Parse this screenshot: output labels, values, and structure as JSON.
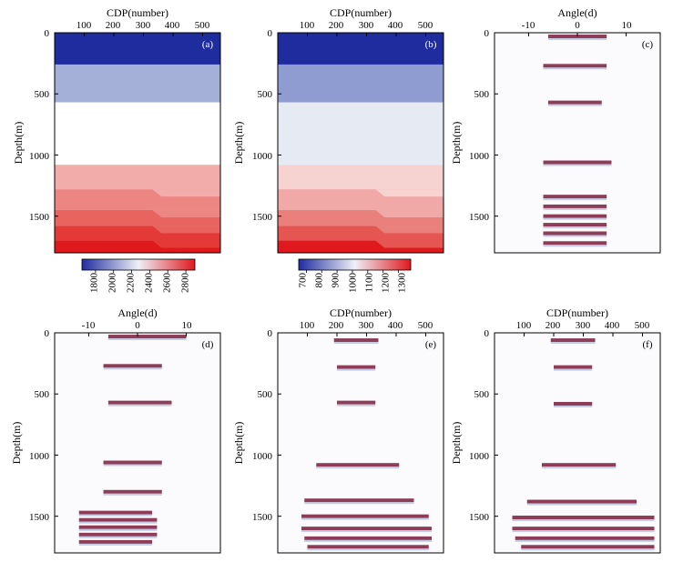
{
  "figure": {
    "panels": [
      {
        "letter": "(a)",
        "xlabel": "CDP(number)",
        "xticks": [
          "100",
          "200",
          "300",
          "400",
          "500"
        ],
        "ylabel": "Depth(m)",
        "yticks": [
          "0",
          "500",
          "1000",
          "1500"
        ],
        "colorbar_ticks": [
          "1800",
          "2000",
          "2200",
          "2400",
          "2600",
          "2800"
        ]
      },
      {
        "letter": "(b)",
        "xlabel": "CDP(number)",
        "xticks": [
          "100",
          "200",
          "300",
          "400",
          "500"
        ],
        "ylabel": "Depth(m)",
        "yticks": [
          "0",
          "500",
          "1000",
          "1500"
        ],
        "colorbar_ticks": [
          "700",
          "800",
          "900",
          "1000",
          "1100",
          "1200",
          "1300"
        ]
      },
      {
        "letter": "(c)",
        "xlabel": "Angle(d)",
        "xticks": [
          "-10",
          "0",
          "10"
        ],
        "ylabel": "Depth(m)",
        "yticks": [
          "0",
          "500",
          "1000",
          "1500"
        ]
      },
      {
        "letter": "(d)",
        "xlabel": "Angle(d)",
        "xticks": [
          "-10",
          "0",
          "10"
        ],
        "ylabel": "Depth(m)",
        "yticks": [
          "0",
          "500",
          "1000",
          "1500"
        ]
      },
      {
        "letter": "(e)",
        "xlabel": "CDP(number)",
        "xticks": [
          "100",
          "200",
          "300",
          "400",
          "500"
        ],
        "ylabel": "Depth(m)",
        "yticks": [
          "0",
          "500",
          "1000",
          "1500"
        ]
      },
      {
        "letter": "(f)",
        "xlabel": "CDP(number)",
        "xticks": [
          "100",
          "200",
          "300",
          "400",
          "500"
        ],
        "ylabel": "Depth(m)",
        "yticks": [
          "0",
          "500",
          "1000",
          "1500"
        ]
      }
    ]
  },
  "colors": {
    "blue": "#1f2c9e",
    "light_blue": "#e6eaf3",
    "red": "#e0191f",
    "event": "#7a1b3b"
  },
  "chart_data": [
    {
      "type": "heatmap",
      "title": "(a)",
      "xlabel": "CDP(number)",
      "ylabel": "Depth(m)",
      "xlim": [
        0,
        560
      ],
      "ylim": [
        0,
        1800
      ],
      "layers": [
        {
          "top_depth": 0,
          "value": 1600,
          "color": "#1f2c9e"
        },
        {
          "top_depth": 260,
          "value": 2000,
          "color": "#a5b0d8"
        },
        {
          "top_depth": 570,
          "value": 2300,
          "color": "#ffffff"
        },
        {
          "top_depth": 1080,
          "value": 2500,
          "color": "#f2adab"
        },
        {
          "top_depth": 1280,
          "value": 2600,
          "color": "#ec8683"
        },
        {
          "top_depth": 1450,
          "value": 2700,
          "color": "#e8645f"
        },
        {
          "top_depth": 1580,
          "value": 2800,
          "color": "#e43a37"
        },
        {
          "top_depth": 1700,
          "value": 2850,
          "color": "#e0191f"
        }
      ],
      "colorbar": {
        "min": 1650,
        "max": 2900,
        "ticks": [
          1800,
          2000,
          2200,
          2400,
          2600,
          2800
        ]
      }
    },
    {
      "type": "heatmap",
      "title": "(b)",
      "xlabel": "CDP(number)",
      "ylabel": "Depth(m)",
      "xlim": [
        0,
        560
      ],
      "ylim": [
        0,
        1800
      ],
      "layers": [
        {
          "top_depth": 0,
          "value": 700,
          "color": "#1f2c9e"
        },
        {
          "top_depth": 260,
          "value": 850,
          "color": "#8e9cd2"
        },
        {
          "top_depth": 570,
          "value": 1000,
          "color": "#e6eaf3"
        },
        {
          "top_depth": 1080,
          "value": 1100,
          "color": "#f6d2d0"
        },
        {
          "top_depth": 1280,
          "value": 1200,
          "color": "#f0a9a6"
        },
        {
          "top_depth": 1450,
          "value": 1250,
          "color": "#ea807b"
        },
        {
          "top_depth": 1580,
          "value": 1300,
          "color": "#e55552"
        },
        {
          "top_depth": 1700,
          "value": 1350,
          "color": "#e0191f"
        }
      ],
      "colorbar": {
        "min": 650,
        "max": 1380,
        "ticks": [
          700,
          800,
          900,
          1000,
          1100,
          1200,
          1300
        ]
      }
    },
    {
      "type": "heatmap",
      "title": "(c)",
      "xlabel": "Angle(d)",
      "ylabel": "Depth(m)",
      "xlim": [
        -17,
        17
      ],
      "ylim": [
        0,
        1800
      ],
      "events": [
        {
          "depth": 30,
          "x_from": -6,
          "x_to": 6
        },
        {
          "depth": 270,
          "x_from": -7,
          "x_to": 6
        },
        {
          "depth": 570,
          "x_from": -6,
          "x_to": 5
        },
        {
          "depth": 1060,
          "x_from": -7,
          "x_to": 7
        },
        {
          "depth": 1340,
          "x_from": -7,
          "x_to": 6
        },
        {
          "depth": 1420,
          "x_from": -7,
          "x_to": 6
        },
        {
          "depth": 1500,
          "x_from": -7,
          "x_to": 6
        },
        {
          "depth": 1570,
          "x_from": -7,
          "x_to": 6
        },
        {
          "depth": 1640,
          "x_from": -7,
          "x_to": 6
        },
        {
          "depth": 1720,
          "x_from": -7,
          "x_to": 6
        }
      ]
    },
    {
      "type": "heatmap",
      "title": "(d)",
      "xlabel": "Angle(d)",
      "ylabel": "Depth(m)",
      "xlim": [
        -17,
        17
      ],
      "ylim": [
        0,
        1800
      ],
      "events": [
        {
          "depth": 30,
          "x_from": -6,
          "x_to": 10
        },
        {
          "depth": 270,
          "x_from": -7,
          "x_to": 5
        },
        {
          "depth": 570,
          "x_from": -6,
          "x_to": 7
        },
        {
          "depth": 1060,
          "x_from": -7,
          "x_to": 5
        },
        {
          "depth": 1300,
          "x_from": -7,
          "x_to": 5
        },
        {
          "depth": 1470,
          "x_from": -12,
          "x_to": 3
        },
        {
          "depth": 1530,
          "x_from": -12,
          "x_to": 4
        },
        {
          "depth": 1590,
          "x_from": -12,
          "x_to": 4
        },
        {
          "depth": 1650,
          "x_from": -12,
          "x_to": 4
        },
        {
          "depth": 1710,
          "x_from": -12,
          "x_to": 3
        }
      ]
    },
    {
      "type": "heatmap",
      "title": "(e)",
      "xlabel": "CDP(number)",
      "ylabel": "Depth(m)",
      "xlim": [
        0,
        560
      ],
      "ylim": [
        0,
        1800
      ],
      "events": [
        {
          "depth": 60,
          "x_from": 190,
          "x_to": 340
        },
        {
          "depth": 280,
          "x_from": 200,
          "x_to": 330
        },
        {
          "depth": 570,
          "x_from": 200,
          "x_to": 330
        },
        {
          "depth": 1080,
          "x_from": 130,
          "x_to": 410
        },
        {
          "depth": 1370,
          "x_from": 90,
          "x_to": 460
        },
        {
          "depth": 1500,
          "x_from": 80,
          "x_to": 510
        },
        {
          "depth": 1600,
          "x_from": 80,
          "x_to": 520
        },
        {
          "depth": 1680,
          "x_from": 90,
          "x_to": 520
        },
        {
          "depth": 1750,
          "x_from": 100,
          "x_to": 510
        }
      ]
    },
    {
      "type": "heatmap",
      "title": "(f)",
      "xlabel": "CDP(number)",
      "ylabel": "Depth(m)",
      "xlim": [
        0,
        560
      ],
      "ylim": [
        0,
        1800
      ],
      "events": [
        {
          "depth": 60,
          "x_from": 190,
          "x_to": 340
        },
        {
          "depth": 280,
          "x_from": 200,
          "x_to": 330
        },
        {
          "depth": 580,
          "x_from": 200,
          "x_to": 330
        },
        {
          "depth": 1080,
          "x_from": 160,
          "x_to": 410
        },
        {
          "depth": 1380,
          "x_from": 110,
          "x_to": 480
        },
        {
          "depth": 1510,
          "x_from": 60,
          "x_to": 540
        },
        {
          "depth": 1600,
          "x_from": 60,
          "x_to": 540
        },
        {
          "depth": 1680,
          "x_from": 70,
          "x_to": 540
        },
        {
          "depth": 1750,
          "x_from": 90,
          "x_to": 540
        }
      ]
    }
  ]
}
